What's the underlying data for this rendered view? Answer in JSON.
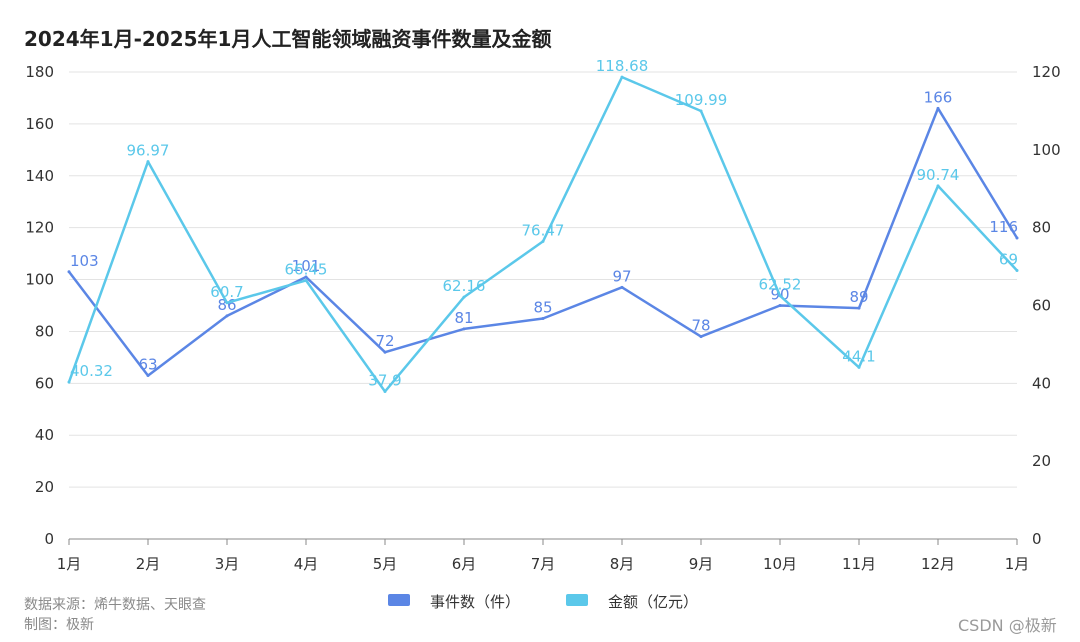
{
  "chart_data": {
    "type": "line",
    "title": "2024年1月-2025年1月人工智能领域融资事件数量及金额",
    "categories": [
      "1月",
      "2月",
      "3月",
      "4月",
      "5月",
      "6月",
      "7月",
      "8月",
      "9月",
      "10月",
      "11月",
      "12月",
      "1月"
    ],
    "y_left": {
      "ylim": [
        0,
        180
      ],
      "ticks": [
        0,
        20,
        40,
        60,
        80,
        100,
        120,
        140,
        160,
        180
      ]
    },
    "y_right": {
      "ylim": [
        0,
        120
      ],
      "ticks": [
        0,
        20,
        40,
        60,
        80,
        100,
        120
      ]
    },
    "grid": true,
    "legend_position": "bottom-center",
    "series": [
      {
        "name": "事件数（件）",
        "axis": "left",
        "color": "#5b86e5",
        "values": [
          103,
          63,
          86,
          101,
          72,
          81,
          85,
          97,
          78,
          90,
          89,
          166,
          116
        ],
        "labels": [
          "103",
          "63",
          "86",
          "101",
          "72",
          "81",
          "85",
          "97",
          "78",
          "90",
          "89",
          "166",
          "116"
        ]
      },
      {
        "name": "金额（亿元）",
        "axis": "right",
        "color": "#5bc8ea",
        "values": [
          40.32,
          96.97,
          60.7,
          66.45,
          37.9,
          62.16,
          76.47,
          118.68,
          109.99,
          62.52,
          44.1,
          90.74,
          69
        ],
        "labels": [
          "40.32",
          "96.97",
          "60.7",
          "66.45",
          "37.9",
          "62.16",
          "76.47",
          "118.68",
          "109.99",
          "62.52",
          "44.1",
          "90.74",
          "69"
        ]
      }
    ]
  },
  "footer": {
    "source": "数据来源：烯牛数据、天眼查",
    "author": "制图：极新"
  },
  "watermark": "CSDN @极新"
}
